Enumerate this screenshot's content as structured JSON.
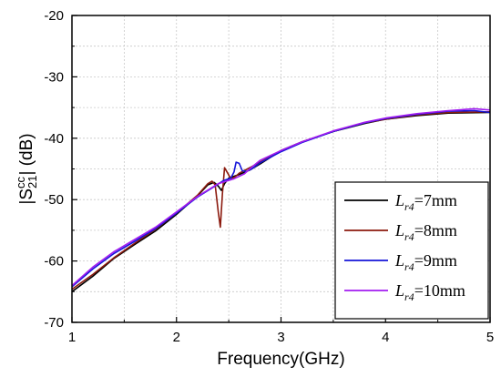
{
  "chart_data": {
    "type": "line",
    "xlabel": "Frequency(GHz)",
    "ylabel_main": "|S",
    "ylabel_sup": "cc",
    "ylabel_sub": "21",
    "ylabel_tail": "| (dB)",
    "xlim": [
      1,
      5
    ],
    "ylim": [
      -70,
      -20
    ],
    "xticks": [
      1,
      2,
      3,
      4,
      5
    ],
    "yticks": [
      -70,
      -60,
      -50,
      -40,
      -30,
      -20
    ],
    "grid": true,
    "legend_position": "bottom-right",
    "series": [
      {
        "legend_sym": "L",
        "legend_sub": "r4",
        "legend_val": "=7mm",
        "color": "#000000",
        "points": [
          [
            1.0,
            -65.0
          ],
          [
            1.2,
            -62.5
          ],
          [
            1.4,
            -59.6
          ],
          [
            1.6,
            -57.3
          ],
          [
            1.8,
            -55.1
          ],
          [
            2.0,
            -52.4
          ],
          [
            2.2,
            -49.4
          ],
          [
            2.3,
            -47.6
          ],
          [
            2.36,
            -47.2
          ],
          [
            2.4,
            -47.8
          ],
          [
            2.43,
            -48.5
          ],
          [
            2.46,
            -47.4
          ],
          [
            2.5,
            -46.5
          ],
          [
            2.6,
            -45.9
          ],
          [
            2.7,
            -45.2
          ],
          [
            2.8,
            -44.2
          ],
          [
            3.0,
            -42.0
          ],
          [
            3.2,
            -40.6
          ],
          [
            3.5,
            -38.9
          ],
          [
            3.8,
            -37.6
          ],
          [
            4.0,
            -36.9
          ],
          [
            4.3,
            -36.3
          ],
          [
            4.6,
            -35.9
          ],
          [
            5.0,
            -35.8
          ]
        ]
      },
      {
        "legend_sym": "L",
        "legend_sub": "r4",
        "legend_val": "=8mm",
        "color": "#8b1a0e",
        "points": [
          [
            1.0,
            -64.6
          ],
          [
            1.2,
            -62.2
          ],
          [
            1.4,
            -59.5
          ],
          [
            1.6,
            -57.1
          ],
          [
            1.8,
            -54.8
          ],
          [
            2.0,
            -52.2
          ],
          [
            2.2,
            -49.3
          ],
          [
            2.3,
            -47.4
          ],
          [
            2.34,
            -47.0
          ],
          [
            2.37,
            -47.6
          ],
          [
            2.4,
            -52.0
          ],
          [
            2.42,
            -54.5
          ],
          [
            2.44,
            -49.0
          ],
          [
            2.46,
            -44.8
          ],
          [
            2.49,
            -45.7
          ],
          [
            2.52,
            -46.6
          ],
          [
            2.56,
            -46.3
          ],
          [
            2.6,
            -45.7
          ],
          [
            2.7,
            -44.8
          ],
          [
            2.8,
            -43.9
          ],
          [
            3.0,
            -42.1
          ],
          [
            3.2,
            -40.6
          ],
          [
            3.5,
            -38.9
          ],
          [
            3.8,
            -37.5
          ],
          [
            4.0,
            -36.9
          ],
          [
            4.3,
            -36.2
          ],
          [
            4.6,
            -35.8
          ],
          [
            5.0,
            -35.7
          ]
        ]
      },
      {
        "legend_sym": "L",
        "legend_sub": "r4",
        "legend_val": "=9mm",
        "color": "#1515d8",
        "points": [
          [
            1.0,
            -64.2
          ],
          [
            1.2,
            -61.3
          ],
          [
            1.4,
            -58.8
          ],
          [
            1.6,
            -56.8
          ],
          [
            1.8,
            -54.7
          ],
          [
            2.0,
            -52.2
          ],
          [
            2.2,
            -49.6
          ],
          [
            2.35,
            -48.0
          ],
          [
            2.45,
            -46.9
          ],
          [
            2.52,
            -46.5
          ],
          [
            2.55,
            -45.5
          ],
          [
            2.57,
            -43.9
          ],
          [
            2.6,
            -44.1
          ],
          [
            2.63,
            -45.3
          ],
          [
            2.67,
            -45.4
          ],
          [
            2.72,
            -45.0
          ],
          [
            2.8,
            -44.0
          ],
          [
            3.0,
            -42.2
          ],
          [
            3.2,
            -40.7
          ],
          [
            3.5,
            -38.9
          ],
          [
            3.8,
            -37.5
          ],
          [
            4.0,
            -36.8
          ],
          [
            4.3,
            -36.1
          ],
          [
            4.6,
            -35.6
          ],
          [
            4.85,
            -35.5
          ],
          [
            5.0,
            -35.8
          ]
        ]
      },
      {
        "legend_sym": "L",
        "legend_sub": "r4",
        "legend_val": "=10mm",
        "color": "#a21cf0",
        "points": [
          [
            1.0,
            -64.0
          ],
          [
            1.2,
            -61.0
          ],
          [
            1.4,
            -58.5
          ],
          [
            1.6,
            -56.5
          ],
          [
            1.8,
            -54.5
          ],
          [
            2.0,
            -52.0
          ],
          [
            2.2,
            -49.5
          ],
          [
            2.4,
            -47.4
          ],
          [
            2.55,
            -46.6
          ],
          [
            2.65,
            -45.8
          ],
          [
            2.72,
            -44.7
          ],
          [
            2.8,
            -43.6
          ],
          [
            3.0,
            -42.0
          ],
          [
            3.2,
            -40.6
          ],
          [
            3.5,
            -38.8
          ],
          [
            3.8,
            -37.4
          ],
          [
            4.0,
            -36.7
          ],
          [
            4.3,
            -36.0
          ],
          [
            4.6,
            -35.5
          ],
          [
            4.85,
            -35.2
          ],
          [
            5.0,
            -35.4
          ]
        ]
      }
    ]
  }
}
